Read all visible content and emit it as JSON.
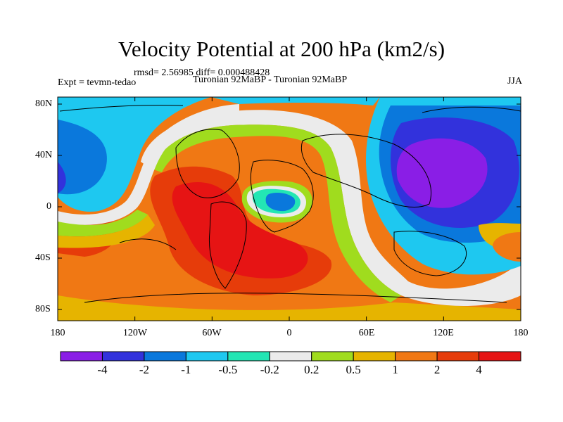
{
  "title": "Velocity Potential at 200 hPa (km2/s)",
  "stats": "rmsd= 2.56985 diff= 0.000488428",
  "experiment": "Expt = tevmn-tedao",
  "period": "Turonian  92MaBP - Turonian  92MaBP",
  "season": "JJA",
  "y_axis_labels": [
    "80N",
    "40N",
    "0",
    "40S",
    "80S"
  ],
  "x_axis_labels": [
    "180",
    "120W",
    "60W",
    "0",
    "60E",
    "120E",
    "180"
  ],
  "colorbar": {
    "colors": [
      "#8a1ee6",
      "#3232dc",
      "#0a78dc",
      "#1ec8f0",
      "#23e6b4",
      "#ebebeb",
      "#a0dc1e",
      "#e6b400",
      "#f07814",
      "#e63c0a",
      "#e61414"
    ],
    "labels": [
      "-4",
      "-2",
      "-1",
      "-0.5",
      "-0.2",
      "0.2",
      "0.5",
      "1",
      "2",
      "4"
    ]
  }
}
